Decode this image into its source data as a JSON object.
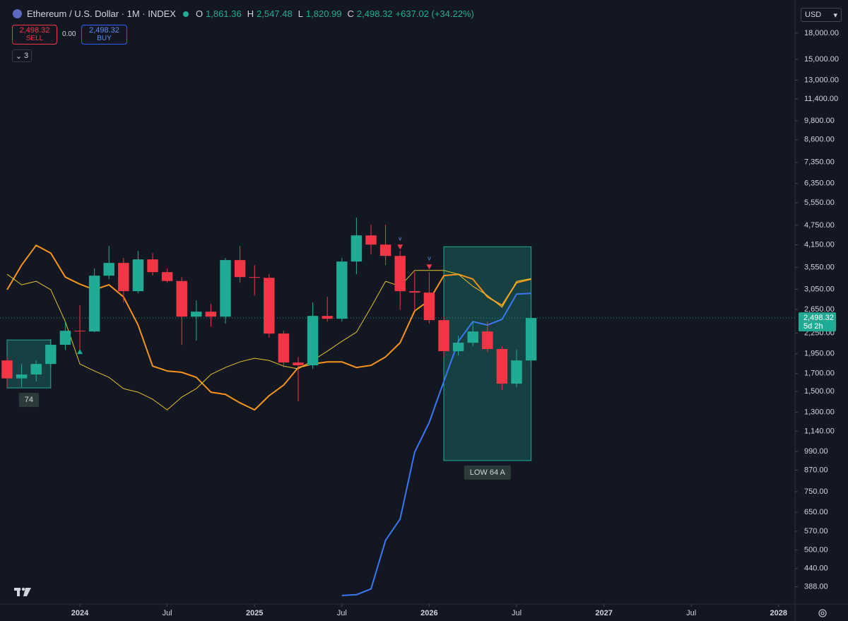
{
  "header": {
    "symbol": "Ethereum / U.S. Dollar · 1M · INDEX",
    "o_label": "O",
    "o": "1,861.36",
    "h_label": "H",
    "h": "2,547.48",
    "l_label": "L",
    "l": "1,820.99",
    "c_label": "C",
    "c": "2,498.32",
    "change": "+637.02 (+34.22%)"
  },
  "trade": {
    "sell_price": "2,498.32",
    "sell": "SELL",
    "spread": "0.00",
    "buy_price": "2,498.32",
    "buy": "BUY"
  },
  "indicators_count": "3",
  "currency": "USD",
  "chart_data": {
    "type": "candlestick",
    "x": [
      "2023-08",
      "2023-09",
      "2023-10",
      "2023-11",
      "2023-12",
      "2024-01",
      "2024-02",
      "2024-03",
      "2024-04",
      "2024-05",
      "2024-06",
      "2024-07",
      "2024-08",
      "2024-09",
      "2024-10",
      "2024-11",
      "2024-12",
      "2025-01",
      "2025-02",
      "2025-03",
      "2025-04",
      "2025-05",
      "2025-06",
      "2025-07",
      "2025-08",
      "2025-09",
      "2025-10",
      "2025-11",
      "2025-12",
      "2026-01",
      "2026-02",
      "2026-03",
      "2026-04",
      "2026-05",
      "2026-06",
      "2026-07",
      "2026-08"
    ],
    "open": [
      1862,
      1644,
      1689,
      1817,
      2075,
      2287,
      2276,
      3351,
      3660,
      3009,
      3751,
      3434,
      3229,
      2522,
      2611,
      2522,
      3733,
      3318,
      3302,
      2243,
      1835,
      1800,
      2535,
      2486,
      3696,
      4430,
      4156,
      3843,
      3009,
      2980,
      2462,
      1985,
      2105,
      2276,
      2015,
      1585,
      1861.36
    ],
    "high": [
      1908,
      1817,
      1862,
      2157,
      2437,
      2728,
      3519,
      4116,
      3788,
      3978,
      3920,
      3519,
      3318,
      2823,
      2755,
      3788,
      4116,
      3607,
      3384,
      2287,
      1908,
      2782,
      2893,
      3788,
      5007,
      4768,
      4768,
      3978,
      3434,
      3434,
      2522,
      2212,
      2437,
      2437,
      2054,
      2004,
      2547.48
    ],
    "low": [
      1546,
      1546,
      1608,
      1773,
      2004,
      2004,
      2265,
      3271,
      2782,
      2965,
      3351,
      3191,
      2075,
      2136,
      2355,
      2402,
      3191,
      2921,
      2179,
      1773,
      1403,
      1756,
      2437,
      2437,
      3384,
      3881,
      3607,
      2650,
      2624,
      2402,
      1908,
      1927,
      2054,
      1975,
      1516,
      1546,
      1820.99
    ],
    "close": [
      1644,
      1689,
      1817,
      2075,
      2287,
      2276,
      3351,
      3660,
      3009,
      3751,
      3434,
      3229,
      2522,
      2611,
      2522,
      3733,
      3318,
      3302,
      2243,
      1835,
      1800,
      2535,
      2486,
      3696,
      4430,
      4156,
      3843,
      3009,
      2980,
      2462,
      1985,
      2105,
      2276,
      2015,
      1585,
      1862,
      2498.32
    ],
    "up_color": "#22ab94",
    "down_color": "#f23645",
    "series": [
      {
        "color": "#f7931a",
        "width": 2,
        "values": [
          3039,
          3607,
          4137,
          3920,
          3318,
          3160,
          3039,
          3145,
          2893,
          2379,
          1790,
          1731,
          1715,
          1656,
          1494,
          1472,
          1388,
          1322,
          1458,
          1569,
          1773,
          1817,
          1844,
          1844,
          1773,
          1800,
          1908,
          2105,
          2624,
          2823,
          3351,
          3384,
          3271,
          2893,
          2728,
          3191,
          3271
        ]
      },
      {
        "color": "#e6c229",
        "width": 1,
        "values": [
          3384,
          3145,
          3224,
          3039,
          2437,
          1817,
          1731,
          1656,
          1531,
          1494,
          1423,
          1322,
          1444,
          1531,
          1689,
          1773,
          1844,
          1890,
          1862,
          1790,
          1756,
          1862,
          1985,
          2126,
          2265,
          2691,
          3224,
          3114,
          3475,
          3475,
          3475,
          3384,
          3114,
          2921,
          2691,
          3224,
          3285
        ]
      },
      {
        "color": "#3a78f2",
        "width": 2,
        "values": [
          null,
          null,
          null,
          null,
          null,
          null,
          null,
          null,
          null,
          null,
          null,
          null,
          null,
          null,
          null,
          null,
          null,
          null,
          null,
          null,
          null,
          null,
          null,
          365,
          367,
          382,
          535,
          620,
          986,
          1211,
          1608,
          2126,
          2437,
          2379,
          2474,
          2950,
          2965
        ]
      }
    ],
    "log_scale": true,
    "ylim": [
      344,
      22650
    ],
    "yticks": [
      {
        "value": 18000,
        "label": "18,000.00"
      },
      {
        "value": 15000,
        "label": "15,000.00"
      },
      {
        "value": 13000,
        "label": "13,000.00"
      },
      {
        "value": 11400,
        "label": "11,400.00"
      },
      {
        "value": 9800,
        "label": "9,800.00"
      },
      {
        "value": 8600,
        "label": "8,600.00"
      },
      {
        "value": 7350,
        "label": "7,350.00"
      },
      {
        "value": 6350,
        "label": "6,350.00"
      },
      {
        "value": 5550,
        "label": "5,550.00"
      },
      {
        "value": 4750,
        "label": "4,750.00"
      },
      {
        "value": 4150,
        "label": "4,150.00"
      },
      {
        "value": 3550,
        "label": "3,550.00"
      },
      {
        "value": 3050,
        "label": "3,050.00"
      },
      {
        "value": 2650,
        "label": "2,650.00"
      },
      {
        "value": 2250,
        "label": "2,250.00"
      },
      {
        "value": 1950,
        "label": "1,950.00"
      },
      {
        "value": 1700,
        "label": "1,700.00"
      },
      {
        "value": 1500,
        "label": "1,500.00"
      },
      {
        "value": 1300,
        "label": "1,300.00"
      },
      {
        "value": 1140,
        "label": "1,140.00"
      },
      {
        "value": 990,
        "label": "990.00"
      },
      {
        "value": 870,
        "label": "870.00"
      },
      {
        "value": 750,
        "label": "750.00"
      },
      {
        "value": 650,
        "label": "650.00"
      },
      {
        "value": 570,
        "label": "570.00"
      },
      {
        "value": 500,
        "label": "500.00"
      },
      {
        "value": 440,
        "label": "440.00"
      },
      {
        "value": 388,
        "label": "388.00"
      }
    ],
    "xlim": [
      "2023-07",
      "2028-03"
    ],
    "xticks": [
      {
        "value": "2024-01",
        "label": "2024"
      },
      {
        "value": "2024-07",
        "label": "Jul"
      },
      {
        "value": "2025-01",
        "label": "2025"
      },
      {
        "value": "2025-07",
        "label": "Jul"
      },
      {
        "value": "2026-01",
        "label": "2026"
      },
      {
        "value": "2026-07",
        "label": "Jul"
      },
      {
        "value": "2027-01",
        "label": "2027"
      },
      {
        "value": "2027-07",
        "label": "Jul"
      },
      {
        "value": "2028-01",
        "label": "2028"
      }
    ],
    "last_price": {
      "value": 2498.32,
      "label": "2,498.32",
      "countdown": "5d 2h"
    },
    "zones": [
      {
        "x0": "2023-08",
        "x1": "2023-11",
        "low": 1539,
        "high": 2146,
        "label": "74"
      },
      {
        "x0": "2026-02",
        "x1": "2026-08",
        "low": 930,
        "high": 4096,
        "label": "LOW 64 A"
      }
    ],
    "markers": [
      {
        "x": "2024-01",
        "y": 1975,
        "shape": "up",
        "color": "#22ab94"
      },
      {
        "x": "2025-11",
        "y": 4096,
        "shape": "down",
        "color": "#f23645",
        "label": "v"
      },
      {
        "x": "2026-01",
        "y": 3570,
        "shape": "down",
        "color": "#f23645",
        "label": "v"
      }
    ]
  }
}
